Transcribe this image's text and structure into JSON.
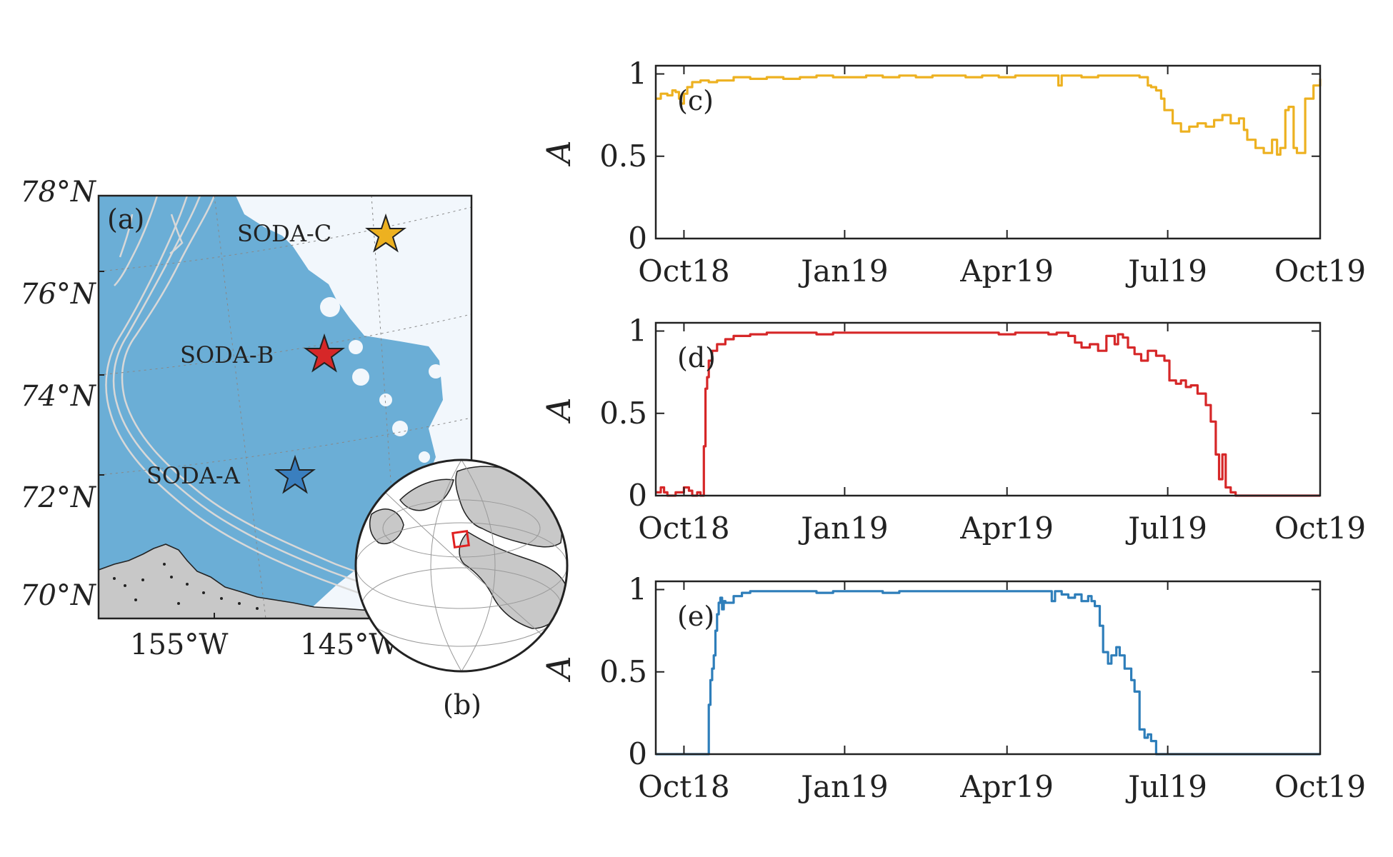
{
  "map": {
    "panel_label": "(a)",
    "inset_label": "(b)",
    "lat_labels": [
      "78°N",
      "76°N",
      "74°N",
      "72°N",
      "70°N"
    ],
    "lon_labels": [
      "155°W",
      "145°W"
    ],
    "stations": [
      {
        "name": "SODA-C",
        "color": "#EDB120"
      },
      {
        "name": "SODA-B",
        "color": "#D62728"
      },
      {
        "name": "SODA-A",
        "color": "#3A7FBF"
      }
    ],
    "ocean_color": "#6BAED6",
    "land_color": "#C8C8C8"
  },
  "chart_data": [
    {
      "type": "line",
      "panel_label": "(c)",
      "station": "SODA-C",
      "ylabel": "A",
      "color": "#EDB120",
      "ylim": [
        0,
        1.05
      ],
      "yticks": [
        {
          "v": 0,
          "label": "0"
        },
        {
          "v": 0.5,
          "label": "0.5"
        },
        {
          "v": 1,
          "label": "1"
        }
      ],
      "xlim": [
        -17,
        384
      ],
      "xticks": [
        {
          "day": 0,
          "label": "Oct18"
        },
        {
          "day": 97,
          "label": "Jan19"
        },
        {
          "day": 195,
          "label": "Apr19"
        },
        {
          "day": 292,
          "label": "Jul19"
        },
        {
          "day": 384,
          "label": "Oct19"
        }
      ],
      "x": [
        -17,
        -14,
        -10,
        -7,
        -5,
        -3,
        -2,
        0,
        2,
        5,
        10,
        15,
        20,
        30,
        40,
        50,
        60,
        70,
        80,
        90,
        100,
        110,
        120,
        130,
        140,
        150,
        160,
        170,
        180,
        190,
        200,
        210,
        220,
        226,
        228,
        230,
        240,
        250,
        260,
        270,
        275,
        280,
        282,
        285,
        288,
        290,
        295,
        300,
        305,
        310,
        315,
        320,
        325,
        330,
        335,
        338,
        340,
        345,
        350,
        355,
        358,
        360,
        363,
        365,
        368,
        370,
        375,
        380,
        384
      ],
      "y": [
        0.85,
        0.88,
        0.87,
        0.9,
        0.89,
        0.85,
        0.82,
        0.88,
        0.92,
        0.95,
        0.96,
        0.95,
        0.96,
        0.98,
        0.97,
        0.98,
        0.97,
        0.98,
        0.99,
        0.98,
        0.98,
        0.99,
        0.98,
        0.99,
        0.98,
        0.99,
        0.99,
        0.98,
        0.99,
        0.98,
        0.99,
        0.99,
        0.99,
        0.93,
        0.99,
        0.99,
        0.98,
        0.99,
        0.99,
        0.99,
        0.98,
        0.93,
        0.92,
        0.9,
        0.85,
        0.78,
        0.7,
        0.65,
        0.68,
        0.7,
        0.68,
        0.72,
        0.75,
        0.7,
        0.73,
        0.66,
        0.6,
        0.55,
        0.52,
        0.6,
        0.51,
        0.55,
        0.78,
        0.8,
        0.55,
        0.52,
        0.85,
        0.93,
        0.97
      ]
    },
    {
      "type": "line",
      "panel_label": "(d)",
      "station": "SODA-B",
      "ylabel": "A",
      "color": "#D62728",
      "ylim": [
        0,
        1.05
      ],
      "yticks": [
        {
          "v": 0,
          "label": "0"
        },
        {
          "v": 0.5,
          "label": "0.5"
        },
        {
          "v": 1,
          "label": "1"
        }
      ],
      "xlim": [
        -17,
        384
      ],
      "xticks": [
        {
          "day": 0,
          "label": "Oct18"
        },
        {
          "day": 97,
          "label": "Jan19"
        },
        {
          "day": 195,
          "label": "Apr19"
        },
        {
          "day": 292,
          "label": "Jul19"
        },
        {
          "day": 384,
          "label": "Oct19"
        }
      ],
      "x": [
        -17,
        -14,
        -12,
        -10,
        -5,
        0,
        3,
        5,
        8,
        10,
        12,
        13,
        14,
        15,
        17,
        20,
        25,
        30,
        40,
        50,
        60,
        70,
        80,
        90,
        100,
        110,
        120,
        130,
        140,
        150,
        160,
        170,
        180,
        190,
        200,
        210,
        220,
        225,
        228,
        232,
        236,
        240,
        245,
        250,
        255,
        260,
        262,
        265,
        268,
        272,
        276,
        280,
        285,
        290,
        293,
        297,
        300,
        303,
        306,
        310,
        315,
        318,
        321,
        323,
        325,
        327,
        330,
        333,
        335,
        340,
        360,
        384
      ],
      "y": [
        0.02,
        0.05,
        0.02,
        0.0,
        0.02,
        0.05,
        0.03,
        0.0,
        0.02,
        0.0,
        0.3,
        0.65,
        0.72,
        0.82,
        0.88,
        0.92,
        0.95,
        0.97,
        0.98,
        0.99,
        0.99,
        0.99,
        0.98,
        0.99,
        0.99,
        0.99,
        0.99,
        0.99,
        0.99,
        0.99,
        0.99,
        0.99,
        0.99,
        0.98,
        0.99,
        0.99,
        0.98,
        0.99,
        0.99,
        0.97,
        0.93,
        0.9,
        0.92,
        0.88,
        0.97,
        0.92,
        0.98,
        0.96,
        0.9,
        0.86,
        0.82,
        0.88,
        0.85,
        0.82,
        0.7,
        0.68,
        0.7,
        0.66,
        0.67,
        0.62,
        0.55,
        0.45,
        0.25,
        0.1,
        0.25,
        0.05,
        0.02,
        0.0,
        0.0,
        0.0,
        0.0,
        0.0
      ]
    },
    {
      "type": "line",
      "panel_label": "(e)",
      "station": "SODA-A",
      "ylabel": "A",
      "color": "#2E7EBA",
      "ylim": [
        0,
        1.05
      ],
      "yticks": [
        {
          "v": 0,
          "label": "0"
        },
        {
          "v": 0.5,
          "label": "0.5"
        },
        {
          "v": 1,
          "label": "1"
        }
      ],
      "xlim": [
        -17,
        384
      ],
      "xticks": [
        {
          "day": 0,
          "label": "Oct18"
        },
        {
          "day": 97,
          "label": "Jan19"
        },
        {
          "day": 195,
          "label": "Apr19"
        },
        {
          "day": 292,
          "label": "Jul19"
        },
        {
          "day": 384,
          "label": "Oct19"
        }
      ],
      "x": [
        -17,
        0,
        10,
        14,
        15,
        16,
        17,
        18,
        19,
        20,
        21,
        22,
        23,
        24,
        25,
        30,
        35,
        40,
        50,
        60,
        70,
        80,
        90,
        100,
        110,
        120,
        130,
        140,
        150,
        160,
        170,
        180,
        190,
        200,
        210,
        220,
        222,
        224,
        228,
        232,
        236,
        240,
        244,
        246,
        248,
        251,
        253,
        256,
        258,
        261,
        263,
        266,
        270,
        272,
        275,
        278,
        280,
        282,
        285,
        288,
        290,
        300,
        384
      ],
      "y": [
        0.0,
        0.0,
        0.0,
        0.0,
        0.3,
        0.45,
        0.52,
        0.6,
        0.75,
        0.85,
        0.92,
        0.95,
        0.88,
        0.93,
        0.92,
        0.96,
        0.98,
        0.99,
        0.99,
        0.99,
        0.99,
        0.98,
        0.99,
        0.99,
        0.99,
        0.98,
        0.99,
        0.99,
        0.99,
        0.99,
        0.99,
        0.99,
        0.99,
        0.99,
        0.99,
        0.99,
        0.93,
        0.99,
        0.97,
        0.95,
        0.97,
        0.93,
        0.96,
        0.93,
        0.9,
        0.78,
        0.62,
        0.55,
        0.6,
        0.65,
        0.6,
        0.52,
        0.45,
        0.38,
        0.15,
        0.1,
        0.12,
        0.08,
        0.0,
        0.0,
        0.0,
        0.0,
        0.0
      ]
    }
  ]
}
